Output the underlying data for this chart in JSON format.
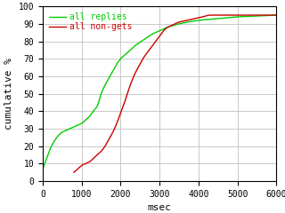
{
  "title": "",
  "xlabel": "msec",
  "ylabel": "cumulative %",
  "xlim": [
    0,
    6000
  ],
  "ylim": [
    0,
    100
  ],
  "xticks": [
    0,
    1000,
    2000,
    3000,
    4000,
    5000,
    6000
  ],
  "yticks": [
    0,
    10,
    20,
    30,
    40,
    50,
    60,
    70,
    80,
    90,
    100
  ],
  "bg_color": "#ffffff",
  "grid_color": "#c0c0c0",
  "line1_color": "#00cc00",
  "line2_color": "#cc0000",
  "line1_label": "all replies",
  "line2_label": "all non-gets",
  "font_family": "monospace",
  "green_x": [
    0,
    50,
    100,
    150,
    200,
    300,
    400,
    500,
    600,
    700,
    800,
    900,
    1000,
    1100,
    1200,
    1300,
    1400,
    1500,
    1600,
    1700,
    1800,
    1900,
    2000,
    2200,
    2400,
    2600,
    2800,
    3000,
    3200,
    3500,
    4000,
    4500,
    5000,
    5500,
    6000
  ],
  "green_y": [
    7,
    10,
    13,
    16,
    19,
    23,
    26,
    28,
    29,
    30,
    31,
    32,
    33,
    35,
    37,
    40,
    43,
    50,
    55,
    59,
    63,
    67,
    70,
    74,
    78,
    81,
    84,
    86,
    88,
    90,
    92,
    93,
    94,
    94.5,
    95
  ],
  "red_x": [
    800,
    850,
    900,
    950,
    1000,
    1100,
    1200,
    1300,
    1400,
    1500,
    1600,
    1700,
    1800,
    1900,
    2000,
    2100,
    2200,
    2300,
    2400,
    2500,
    2600,
    2700,
    2800,
    2900,
    3000,
    3100,
    3200,
    3300,
    3500,
    3700,
    3900,
    4100,
    4300,
    4500,
    5000,
    6000
  ],
  "red_y": [
    5,
    6,
    7,
    8,
    9,
    10,
    11,
    13,
    15,
    17,
    20,
    24,
    28,
    33,
    39,
    45,
    52,
    58,
    63,
    67,
    71,
    74,
    77,
    80,
    83,
    86,
    88,
    89,
    91,
    92,
    93,
    94,
    95,
    95,
    95,
    95
  ]
}
